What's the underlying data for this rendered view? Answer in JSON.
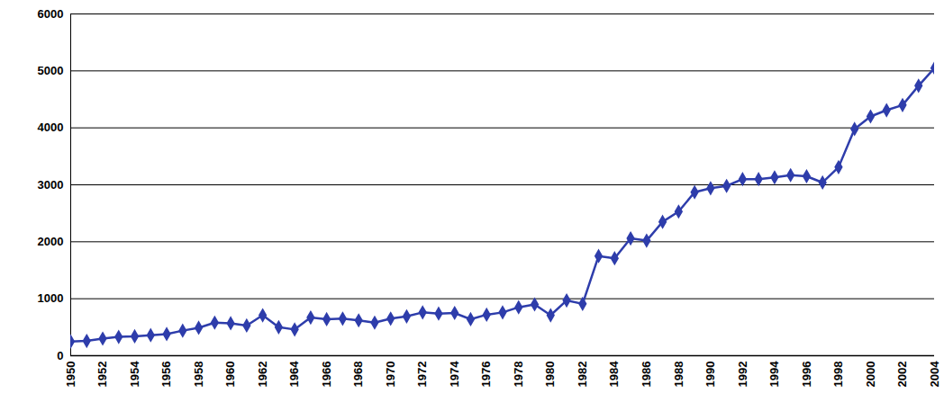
{
  "chart_data": {
    "type": "line",
    "x": [
      1950,
      1951,
      1952,
      1953,
      1954,
      1955,
      1956,
      1957,
      1958,
      1959,
      1960,
      1961,
      1962,
      1963,
      1964,
      1965,
      1966,
      1967,
      1968,
      1969,
      1970,
      1971,
      1972,
      1973,
      1974,
      1975,
      1976,
      1977,
      1978,
      1979,
      1980,
      1981,
      1982,
      1983,
      1984,
      1985,
      1986,
      1987,
      1988,
      1989,
      1990,
      1991,
      1992,
      1993,
      1994,
      1995,
      1996,
      1997,
      1998,
      1999,
      2000,
      2001,
      2002,
      2003,
      2004
    ],
    "values": [
      250,
      260,
      300,
      330,
      340,
      360,
      380,
      440,
      490,
      580,
      570,
      530,
      710,
      500,
      460,
      670,
      640,
      650,
      620,
      580,
      650,
      690,
      760,
      740,
      750,
      640,
      720,
      760,
      850,
      900,
      710,
      970,
      910,
      1750,
      1710,
      2060,
      2020,
      2350,
      2530,
      2870,
      2940,
      2980,
      3100,
      3100,
      3130,
      3170,
      3150,
      3040,
      3310,
      3980,
      4200,
      4310,
      4400,
      4740,
      5050
    ],
    "color": "#2e3dab",
    "marker": "diamond",
    "xlim": [
      1950,
      2004
    ],
    "xticks": [
      1950,
      1952,
      1954,
      1956,
      1958,
      1960,
      1962,
      1964,
      1966,
      1968,
      1970,
      1972,
      1974,
      1976,
      1978,
      1980,
      1982,
      1984,
      1986,
      1988,
      1990,
      1992,
      1994,
      1996,
      1998,
      2000,
      2002,
      2004
    ],
    "ylim": [
      0,
      6000
    ],
    "yticks": [
      0,
      1000,
      2000,
      3000,
      4000,
      5000,
      6000
    ],
    "grid": true
  }
}
